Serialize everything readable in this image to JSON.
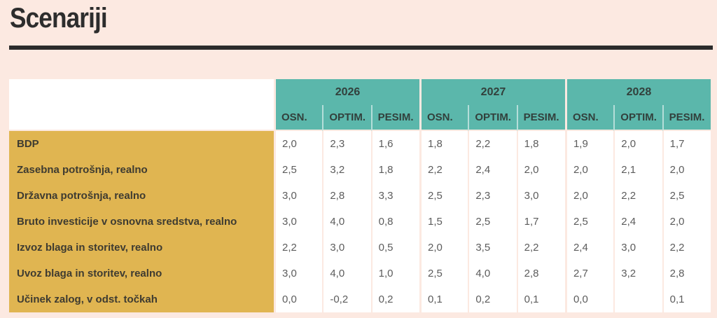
{
  "page": {
    "title": "Scenariji",
    "background_color": "#fce9e1",
    "title_color": "#2d2d2d",
    "rule_color": "#2b2b2b"
  },
  "chart_data": {
    "type": "table",
    "title": "Scenariji",
    "legend_position": "none",
    "grid": "off",
    "year_groups": [
      {
        "year": "2026",
        "sub": [
          "OSN.",
          "OPTIM.",
          "PESIM."
        ]
      },
      {
        "year": "2027",
        "sub": [
          "OSN.",
          "OPTIM.",
          "PESIM."
        ]
      },
      {
        "year": "2028",
        "sub": [
          "OSN.",
          "OPTIM.",
          "PESIM."
        ]
      }
    ],
    "rows": [
      {
        "label": "BDP",
        "values": [
          "2,0",
          "2,3",
          "1,6",
          "1,8",
          "2,2",
          "1,8",
          "1,9",
          "2,0",
          "1,7"
        ]
      },
      {
        "label": "Zasebna potrošnja, realno",
        "values": [
          "2,5",
          "3,2",
          "1,8",
          "2,2",
          "2,4",
          "2,0",
          "2,0",
          "2,1",
          "2,0"
        ]
      },
      {
        "label": "Državna potrošnja, realno",
        "values": [
          "3,0",
          "2,8",
          "3,3",
          "2,5",
          "2,3",
          "3,0",
          "2,0",
          "2,2",
          "2,5"
        ]
      },
      {
        "label": "Bruto investicije v osnovna sredstva, realno",
        "values": [
          "3,0",
          "4,0",
          "0,8",
          "1,5",
          "2,5",
          "1,7",
          "2,5",
          "2,4",
          "2,0"
        ]
      },
      {
        "label": "Izvoz blaga in storitev, realno",
        "values": [
          "2,2",
          "3,0",
          "0,5",
          "2,0",
          "3,5",
          "2,2",
          "2,4",
          "3,0",
          "2,2"
        ]
      },
      {
        "label": "Uvoz blaga in storitev, realno",
        "values": [
          "3,0",
          "4,0",
          "1,0",
          "2,5",
          "4,0",
          "2,8",
          "2,7",
          "3,2",
          "2,8"
        ]
      },
      {
        "label": "Učinek zalog, v odst. točkah",
        "values": [
          "0,0",
          "-0,2",
          "0,2",
          "0,1",
          "0,2",
          "0,1",
          "0,0",
          "",
          "0,1"
        ]
      }
    ],
    "colors": {
      "header_bg": "#5bb7ab",
      "row_label_bg": "#e0b551",
      "cell_bg": "#ffffff",
      "header_text": "#32403c",
      "label_text": "#3e3b31",
      "value_text": "#5c5c5c"
    }
  }
}
